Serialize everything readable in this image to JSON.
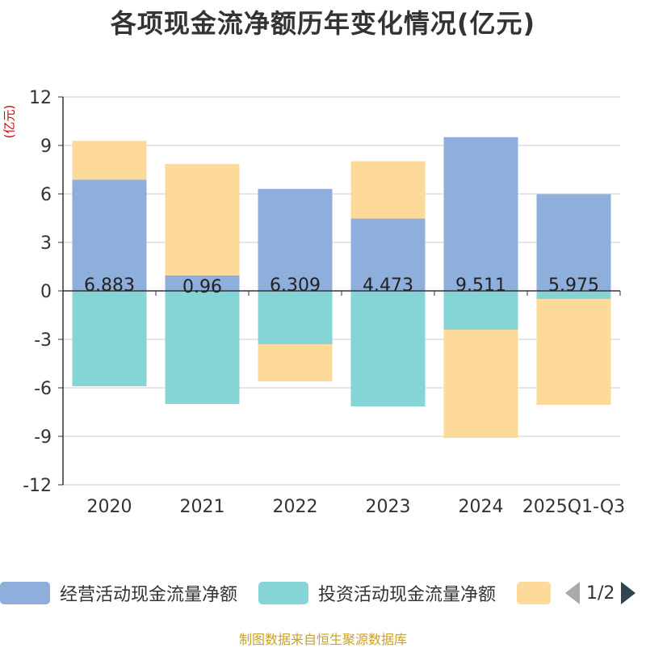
{
  "chart_data": {
    "type": "bar",
    "stacked": true,
    "title": "各项现金流净额历年变化情况(亿元)",
    "ylabel": "(亿元)",
    "xlabel": "",
    "ylim": [
      -12,
      12
    ],
    "yticks": [
      12,
      9,
      6,
      3,
      0,
      -3,
      -6,
      -9,
      -12
    ],
    "categories": [
      "2020",
      "2021",
      "2022",
      "2023",
      "2024",
      "2025Q1-Q3"
    ],
    "series": [
      {
        "name": "经营活动现金流量净额",
        "color": "#8eaedb",
        "values": [
          6.883,
          0.96,
          6.309,
          4.473,
          9.511,
          5.975
        ],
        "labels": [
          "6.883",
          "0.96",
          "6.309",
          "4.473",
          "9.511",
          "5.975"
        ]
      },
      {
        "name": "投资活动现金流量净额",
        "color": "#86d5d6",
        "values": [
          -5.9,
          -7.0,
          -3.3,
          -7.15,
          -2.4,
          -0.5
        ]
      },
      {
        "name": "",
        "color": "#fdd99a",
        "values": [
          2.4,
          6.9,
          -2.3,
          3.55,
          -6.7,
          -6.55
        ]
      }
    ]
  },
  "legend": {
    "page": "1/2"
  },
  "source": "制图数据来自恒生聚源数据库"
}
